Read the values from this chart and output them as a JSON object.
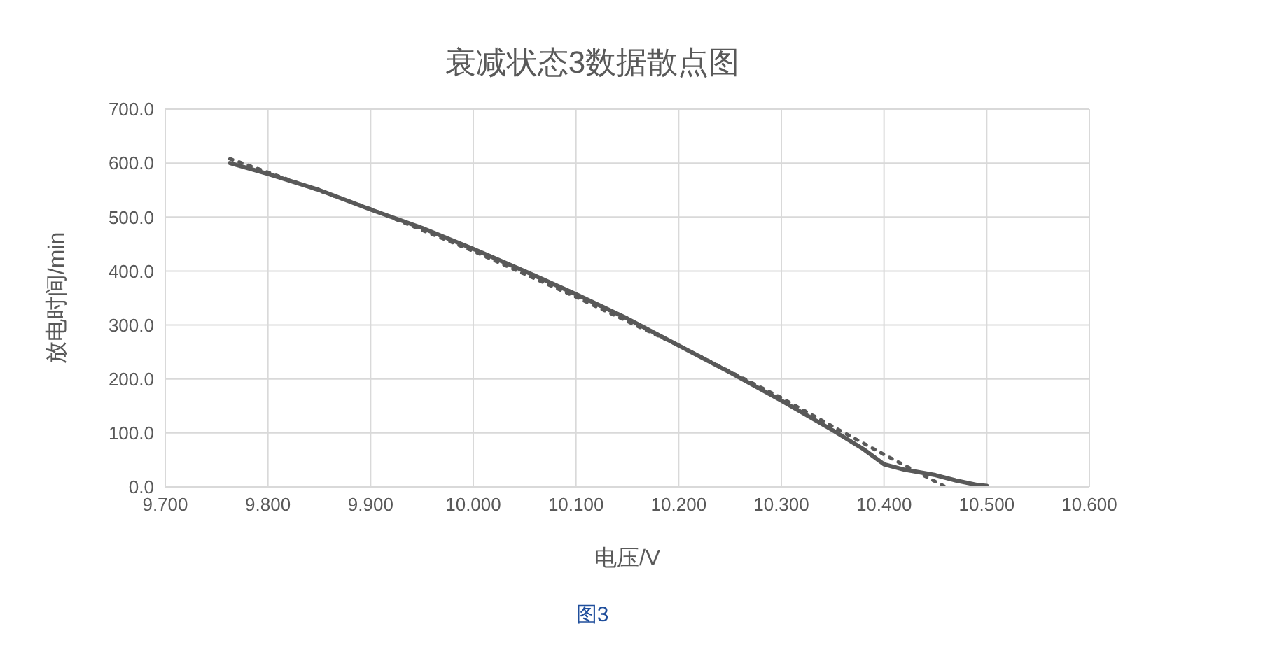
{
  "chart_data": {
    "type": "line",
    "title": "衰减状态3数据散点图",
    "xlabel": "电压/V",
    "ylabel": "放电时间/min",
    "annotations": [
      "图3"
    ],
    "xlim": [
      9.7,
      10.6
    ],
    "xticks": [
      {
        "value": 9.7,
        "label": "9.700"
      },
      {
        "value": 9.8,
        "label": "9.800"
      },
      {
        "value": 9.9,
        "label": "9.900"
      },
      {
        "value": 10.0,
        "label": "10.000"
      },
      {
        "value": 10.1,
        "label": "10.100"
      },
      {
        "value": 10.2,
        "label": "10.200"
      },
      {
        "value": 10.3,
        "label": "10.300"
      },
      {
        "value": 10.4,
        "label": "10.400"
      },
      {
        "value": 10.5,
        "label": "10.500"
      },
      {
        "value": 10.6,
        "label": "10.600"
      }
    ],
    "ylim": [
      0,
      700
    ],
    "yticks": [
      {
        "value": 0,
        "label": "0.0"
      },
      {
        "value": 100,
        "label": "100.0"
      },
      {
        "value": 200,
        "label": "200.0"
      },
      {
        "value": 300,
        "label": "300.0"
      },
      {
        "value": 400,
        "label": "400.0"
      },
      {
        "value": 500,
        "label": "500.0"
      },
      {
        "value": 600,
        "label": "600.0"
      },
      {
        "value": 700,
        "label": "700.0"
      }
    ],
    "grid": true,
    "marker": "none",
    "series": [
      {
        "color": "#595959",
        "line_style": "solid",
        "x": [
          9.763,
          9.8,
          9.85,
          9.9,
          9.95,
          10.0,
          10.05,
          10.1,
          10.15,
          10.2,
          10.25,
          10.3,
          10.35,
          10.38,
          10.4,
          10.42,
          10.45,
          10.47,
          10.49,
          10.5
        ],
        "values": [
          600,
          580,
          550,
          514,
          480,
          441,
          400,
          357,
          312,
          262,
          212,
          160,
          105,
          70,
          42,
          32,
          22,
          12,
          4,
          2
        ]
      },
      {
        "color": "#595959",
        "line_style": "dotted",
        "x": [
          9.763,
          9.9,
          10.0,
          10.1,
          10.2,
          10.3,
          10.35,
          10.4,
          10.46
        ],
        "values": [
          608,
          515,
          437,
          352,
          262,
          165,
          112,
          60,
          0
        ]
      }
    ]
  }
}
